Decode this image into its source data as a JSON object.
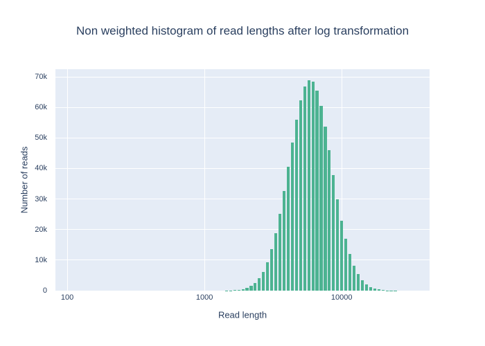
{
  "chart_data": {
    "type": "bar",
    "subtype": "histogram",
    "title": "Non weighted histogram of read lengths after log transformation",
    "xlabel": "Read length",
    "ylabel": "Number of reads",
    "x_scale": "log10",
    "x_range_log10": [
      1.914,
      4.64
    ],
    "ylim": [
      0,
      72500
    ],
    "grid": true,
    "legend": "none",
    "y_ticks": [
      {
        "value": 0,
        "label": "0"
      },
      {
        "value": 10000,
        "label": "10k"
      },
      {
        "value": 20000,
        "label": "20k"
      },
      {
        "value": 30000,
        "label": "30k"
      },
      {
        "value": 40000,
        "label": "40k"
      },
      {
        "value": 50000,
        "label": "50k"
      },
      {
        "value": 60000,
        "label": "60k"
      },
      {
        "value": 70000,
        "label": "70k"
      }
    ],
    "x_ticks": [
      {
        "log10": 2,
        "label": "100"
      },
      {
        "log10": 3,
        "label": "1000"
      },
      {
        "log10": 4,
        "label": "10000"
      }
    ],
    "bin_log10_width": 0.03,
    "bar_fill_fraction": 0.7,
    "bin_log10_centers": [
      3.16,
      3.19,
      3.22,
      3.25,
      3.28,
      3.31,
      3.34,
      3.37,
      3.4,
      3.43,
      3.46,
      3.49,
      3.52,
      3.55,
      3.58,
      3.61,
      3.64,
      3.67,
      3.7,
      3.73,
      3.76,
      3.79,
      3.82,
      3.85,
      3.88,
      3.91,
      3.94,
      3.97,
      4.0,
      4.03,
      4.06,
      4.09,
      4.12,
      4.15,
      4.18,
      4.21,
      4.24,
      4.27,
      4.3,
      4.33,
      4.36,
      4.39,
      4.42,
      4.45,
      4.48
    ],
    "values": [
      30,
      63,
      127,
      248,
      466,
      845,
      1473,
      2470,
      3996,
      6216,
      9337,
      13500,
      18790,
      25200,
      32550,
      40500,
      48540,
      56030,
      62310,
      66740,
      68860,
      68430,
      65500,
      60400,
      53640,
      45890,
      37810,
      30010,
      22950,
      16900,
      11990,
      8190,
      5390,
      3414,
      2086,
      1228,
      694,
      379,
      199,
      101,
      49,
      23,
      10,
      5,
      2
    ],
    "colors": {
      "bar": "#4CB391",
      "plot_background": "#E5ECF6",
      "gridline": "#FFFFFF",
      "text": "#2A3F5F",
      "page_background": "#FFFFFF"
    }
  }
}
